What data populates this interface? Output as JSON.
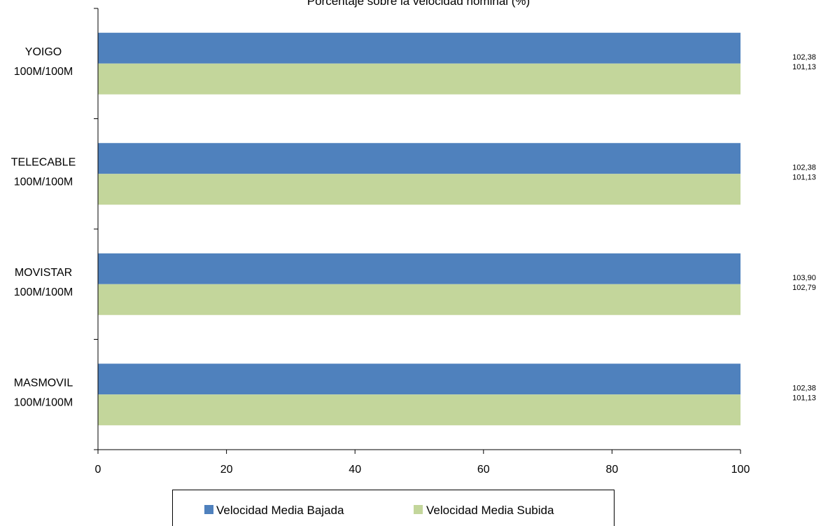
{
  "chart_data": {
    "type": "bar",
    "orientation": "horizontal",
    "title": "Porcentaje sobre la velocidad nominal (%)",
    "xlabel": "",
    "ylabel": "",
    "xlim": [
      0,
      100
    ],
    "x_ticks": [
      "0",
      "20",
      "40",
      "60",
      "80",
      "100"
    ],
    "categories": [
      [
        "YOIGO",
        "100M/100M"
      ],
      [
        "TELECABLE",
        "100M/100M"
      ],
      [
        "MOVISTAR",
        "100M/100M"
      ],
      [
        "MASMOVIL",
        "100M/100M"
      ]
    ],
    "series": [
      {
        "name": "Velocidad Media Bajada",
        "color": "#4f81bd",
        "values": [
          102.38,
          102.38,
          103.9,
          102.38
        ],
        "labels": [
          "102,38",
          "102,38",
          "103,90",
          "102,38"
        ]
      },
      {
        "name": "Velocidad Media Subida",
        "color": "#c3d69b",
        "values": [
          101.13,
          101.13,
          102.79,
          101.13
        ],
        "labels": [
          "101,13",
          "101,13",
          "102,79",
          "101,13"
        ]
      }
    ],
    "grid": false,
    "legend_position": "bottom"
  }
}
